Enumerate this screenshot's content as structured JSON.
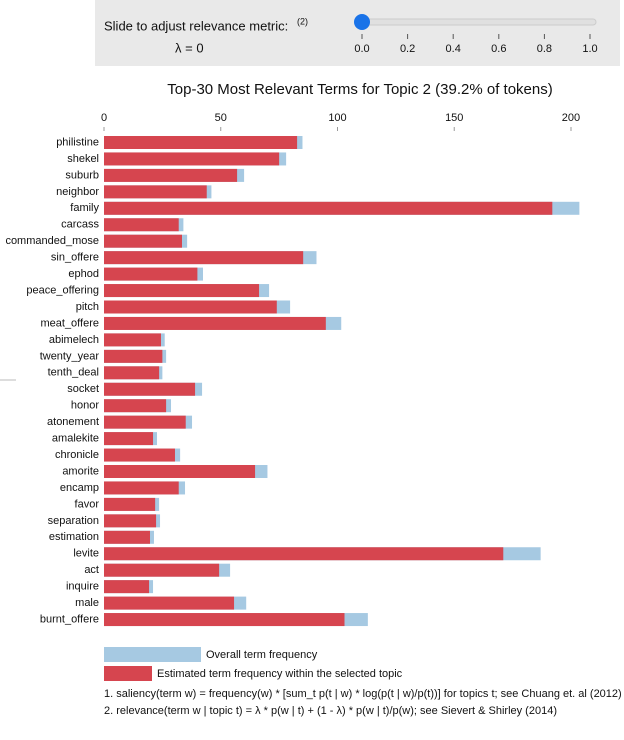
{
  "slider": {
    "label": "Slide to adjust relevance metric:",
    "footnote_mark": "(2)",
    "lambda_label": "λ = 0",
    "value": 0,
    "xlim": [
      0,
      1
    ],
    "ticks": [
      {
        "value": 0,
        "label": "0.0"
      },
      {
        "value": 0.2,
        "label": "0.2"
      },
      {
        "value": 0.4,
        "label": "0.4"
      },
      {
        "value": 0.6,
        "label": "0.6"
      },
      {
        "value": 0.8,
        "label": "0.8"
      },
      {
        "value": 1,
        "label": "1.0"
      }
    ]
  },
  "chart_data": {
    "type": "bar",
    "orientation": "horizontal",
    "title": "Top-30 Most Relevant Terms for Topic 2 (39.2% of tokens)",
    "categories": [
      "philistine",
      "shekel",
      "suburb",
      "neighbor",
      "family",
      "carcass",
      "commanded_mose",
      "sin_offere",
      "ephod",
      "peace_offering",
      "pitch",
      "meat_offere",
      "abimelech",
      "twenty_year",
      "tenth_deal",
      "socket",
      "honor",
      "atonement",
      "amalekite",
      "chronicle",
      "amorite",
      "encamp",
      "favor",
      "separation",
      "estimation",
      "levite",
      "act",
      "inquire",
      "male",
      "burnt_offere"
    ],
    "series": [
      {
        "name": "Overall term frequency",
        "color": "#a6c9e2",
        "values": [
          85,
          78,
          60,
          46,
          203.6,
          34,
          35.6,
          91,
          42.4,
          70.7,
          79.7,
          101.6,
          26,
          26.6,
          25,
          42,
          28.7,
          37.7,
          22.7,
          32.6,
          70,
          34.7,
          23.6,
          24,
          21.4,
          187,
          54,
          21,
          60.9,
          113
        ]
      },
      {
        "name": "Estimated term frequency within the selected topic",
        "color": "#d6454f",
        "values": [
          82.7,
          75,
          57,
          44,
          192,
          32,
          33.4,
          85.3,
          40,
          66.4,
          74,
          95,
          24.4,
          25,
          23.6,
          39,
          26.6,
          35,
          21,
          30.4,
          64.7,
          32,
          21.9,
          22.3,
          19.7,
          171,
          49.3,
          19.3,
          55.7,
          103
        ]
      }
    ],
    "xlim": [
      0,
      206
    ],
    "xticks": [
      0,
      50,
      100,
      150,
      200
    ]
  },
  "notes": [
    "1. saliency(term w) = frequency(w) * [sum_t p(t | w) * log(p(t | w)/p(t))] for topics t; see Chuang et. al (2012)",
    "2. relevance(term w | topic t) = λ * p(w | t) + (1 - λ) * p(w | t)/p(w); see Sievert & Shirley (2014)"
  ]
}
